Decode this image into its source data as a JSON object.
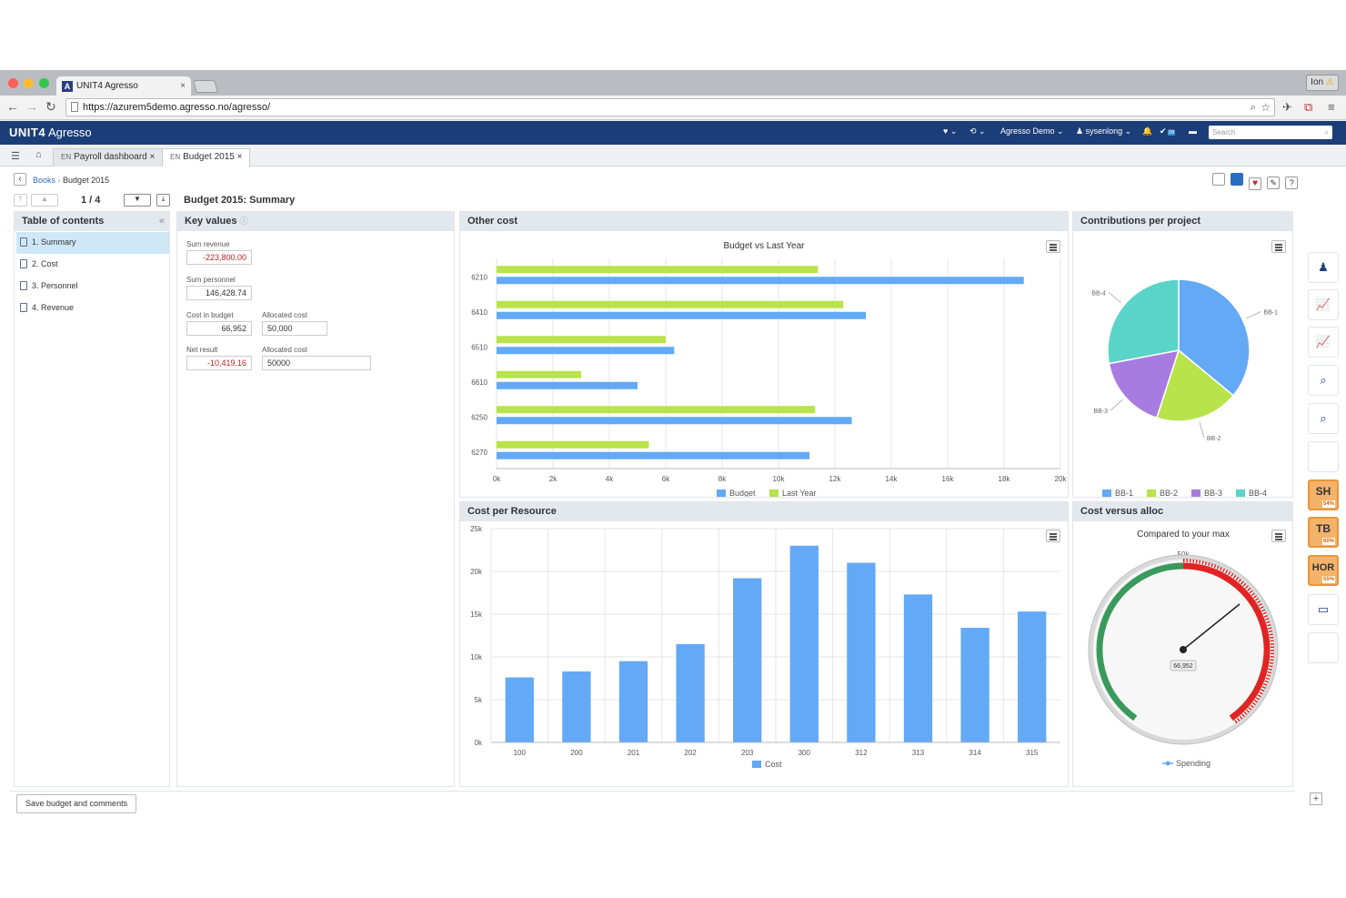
{
  "browser": {
    "tab_title": "UNIT4 Agresso",
    "tab_favicon": "A",
    "profile": "Ion",
    "url": "https://azurem5demo.agresso.no/agresso/"
  },
  "app": {
    "logo_brand": "UNIT4",
    "logo_product": "Agresso",
    "company": "Agresso Demo",
    "user": "sysenlong",
    "tasks_count": "39",
    "search_placeholder": "Search"
  },
  "page_tabs": [
    {
      "lang": "EN",
      "label": "Payroll dashboard"
    },
    {
      "lang": "EN",
      "label": "Budget 2015"
    }
  ],
  "breadcrumb": {
    "root": "Books",
    "current": "Budget 2015"
  },
  "pager": {
    "text": "1 / 4"
  },
  "report_title": "Budget 2015: Summary",
  "toc": {
    "title": "Table of contents",
    "items": [
      "1. Summary",
      "2. Cost",
      "3. Personnel",
      "4. Revenue"
    ]
  },
  "key_values": {
    "title": "Key values",
    "sum_revenue_label": "Sum revenue",
    "sum_revenue": "-223,800.00",
    "sum_personnel_label": "Sum personnel",
    "sum_personnel": "146,428.74",
    "cost_in_budget_label": "Cost in budget",
    "cost_in_budget": "66,952",
    "allocated_cost_label": "Allocated cost",
    "allocated_cost": "50,000",
    "net_result_label": "Net result",
    "net_result": "-10,419.16",
    "allocated_cost2_label": "Allocated cost",
    "allocated_cost2": "50000"
  },
  "save_button": "Save budget and comments",
  "right_toolbar": {
    "sh": "SH",
    "sh_pct": "54%",
    "tb": "TB",
    "tb_pct": "60%",
    "hor": "HOR",
    "hor_pct": "55%"
  },
  "colors": {
    "budget": "#63a9f5",
    "last_year": "#b9e34a",
    "bb3": "#a87be0",
    "bb4": "#5ad4c9",
    "header": "#1c3e78"
  },
  "chart_data": [
    {
      "panel": "Other cost",
      "type": "bar",
      "orientation": "horizontal",
      "title": "Budget vs Last Year",
      "categories": [
        "6210",
        "6410",
        "6510",
        "6610",
        "6250",
        "6270"
      ],
      "series": [
        {
          "name": "Budget",
          "values": [
            18.7,
            13.1,
            6.3,
            5.0,
            12.6,
            11.1
          ]
        },
        {
          "name": "Last Year",
          "values": [
            11.4,
            12.3,
            6.0,
            3.0,
            11.3,
            5.4
          ]
        }
      ],
      "xlim": [
        0,
        20
      ],
      "ticks": [
        "0k",
        "2k",
        "4k",
        "6k",
        "8k",
        "10k",
        "12k",
        "14k",
        "16k",
        "18k",
        "20k"
      ],
      "legend": "bottom"
    },
    {
      "panel": "Contributions per project",
      "type": "pie",
      "labels": [
        "BB-1",
        "BB-2",
        "BB-3",
        "BB-4"
      ],
      "values": [
        36,
        19,
        17,
        28
      ],
      "legend": "bottom"
    },
    {
      "panel": "Cost per Resource",
      "type": "bar",
      "categories": [
        "100",
        "200",
        "201",
        "202",
        "203",
        "300",
        "312",
        "313",
        "314",
        "315"
      ],
      "series": [
        {
          "name": "Cost",
          "values": [
            7.6,
            8.3,
            9.5,
            11.5,
            19.2,
            23.0,
            21.0,
            17.3,
            13.4,
            15.3
          ]
        }
      ],
      "ylim": [
        0,
        25
      ],
      "ticks": [
        "0k",
        "5k",
        "10k",
        "15k",
        "20k",
        "25k"
      ],
      "legend": "bottom"
    },
    {
      "panel": "Cost versus alloc",
      "type": "gauge",
      "title": "Compared to your max",
      "value": 66952,
      "value_label": "66,952",
      "max_label": "50k",
      "series": [
        {
          "name": "Spending"
        }
      ],
      "legend": "bottom"
    }
  ]
}
